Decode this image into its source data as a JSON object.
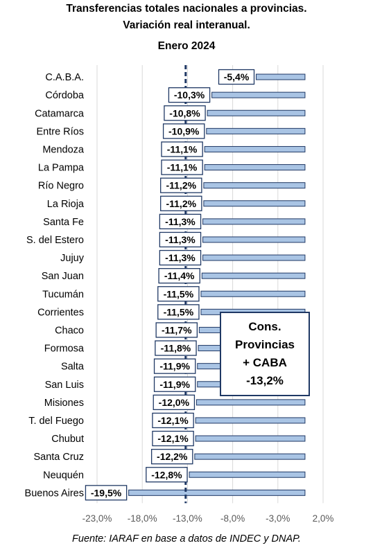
{
  "title_line1": "Transferencias totales nacionales a provincias.",
  "title_line2": "Variación real interanual.",
  "title_line3": "Enero 2024",
  "source": "Fuente: IARAF en base a datos de INDEC y DNAP.",
  "callout": {
    "line1": "Cons.",
    "line2": "Provincias",
    "line3": "+ CABA",
    "line4": "-13,2%"
  },
  "colors": {
    "bar_fill": "#a9c4e4",
    "bar_stroke": "#1f3864",
    "reference_line": "#1f3864",
    "grid": "#d9d9d9"
  },
  "chart_data": {
    "type": "bar",
    "orientation": "horizontal",
    "title": "Transferencias totales nacionales a provincias. Variación real interanual. Enero 2024",
    "categories": [
      "C.A.B.A.",
      "Córdoba",
      "Catamarca",
      "Entre Ríos",
      "Mendoza",
      "La Pampa",
      "Río Negro",
      "La Rioja",
      "Santa Fe",
      "S. del Estero",
      "Jujuy",
      "San Juan",
      "Tucumán",
      "Corrientes",
      "Chaco",
      "Formosa",
      "Salta",
      "San Luis",
      "Misiones",
      "T. del Fuego",
      "Chubut",
      "Santa Cruz",
      "Neuquén",
      "Buenos Aires"
    ],
    "values": [
      -5.4,
      -10.3,
      -10.8,
      -10.9,
      -11.1,
      -11.1,
      -11.2,
      -11.2,
      -11.3,
      -11.3,
      -11.3,
      -11.4,
      -11.5,
      -11.5,
      -11.7,
      -11.8,
      -11.9,
      -11.9,
      -12.0,
      -12.1,
      -12.1,
      -12.2,
      -12.8,
      -19.5
    ],
    "data_labels": [
      "-5,4%",
      "-10,3%",
      "-10,8%",
      "-10,9%",
      "-11,1%",
      "-11,1%",
      "-11,2%",
      "-11,2%",
      "-11,3%",
      "-11,3%",
      "-11,3%",
      "-11,4%",
      "-11,5%",
      "-11,5%",
      "-11,7%",
      "-11,8%",
      "-11,9%",
      "-11,9%",
      "-12,0%",
      "-12,1%",
      "-12,1%",
      "-12,2%",
      "-12,8%",
      "-19,5%"
    ],
    "xlim": [
      -23,
      2
    ],
    "xticks": [
      -23,
      -18,
      -13,
      -8,
      -3,
      2
    ],
    "xtick_labels": [
      "-23,0%",
      "-18,0%",
      "-13,0%",
      "-8,0%",
      "-3,0%",
      "2,0%"
    ],
    "reference_line": {
      "value": -13.2,
      "style": "dashed"
    },
    "grid": true,
    "legend": "none"
  }
}
